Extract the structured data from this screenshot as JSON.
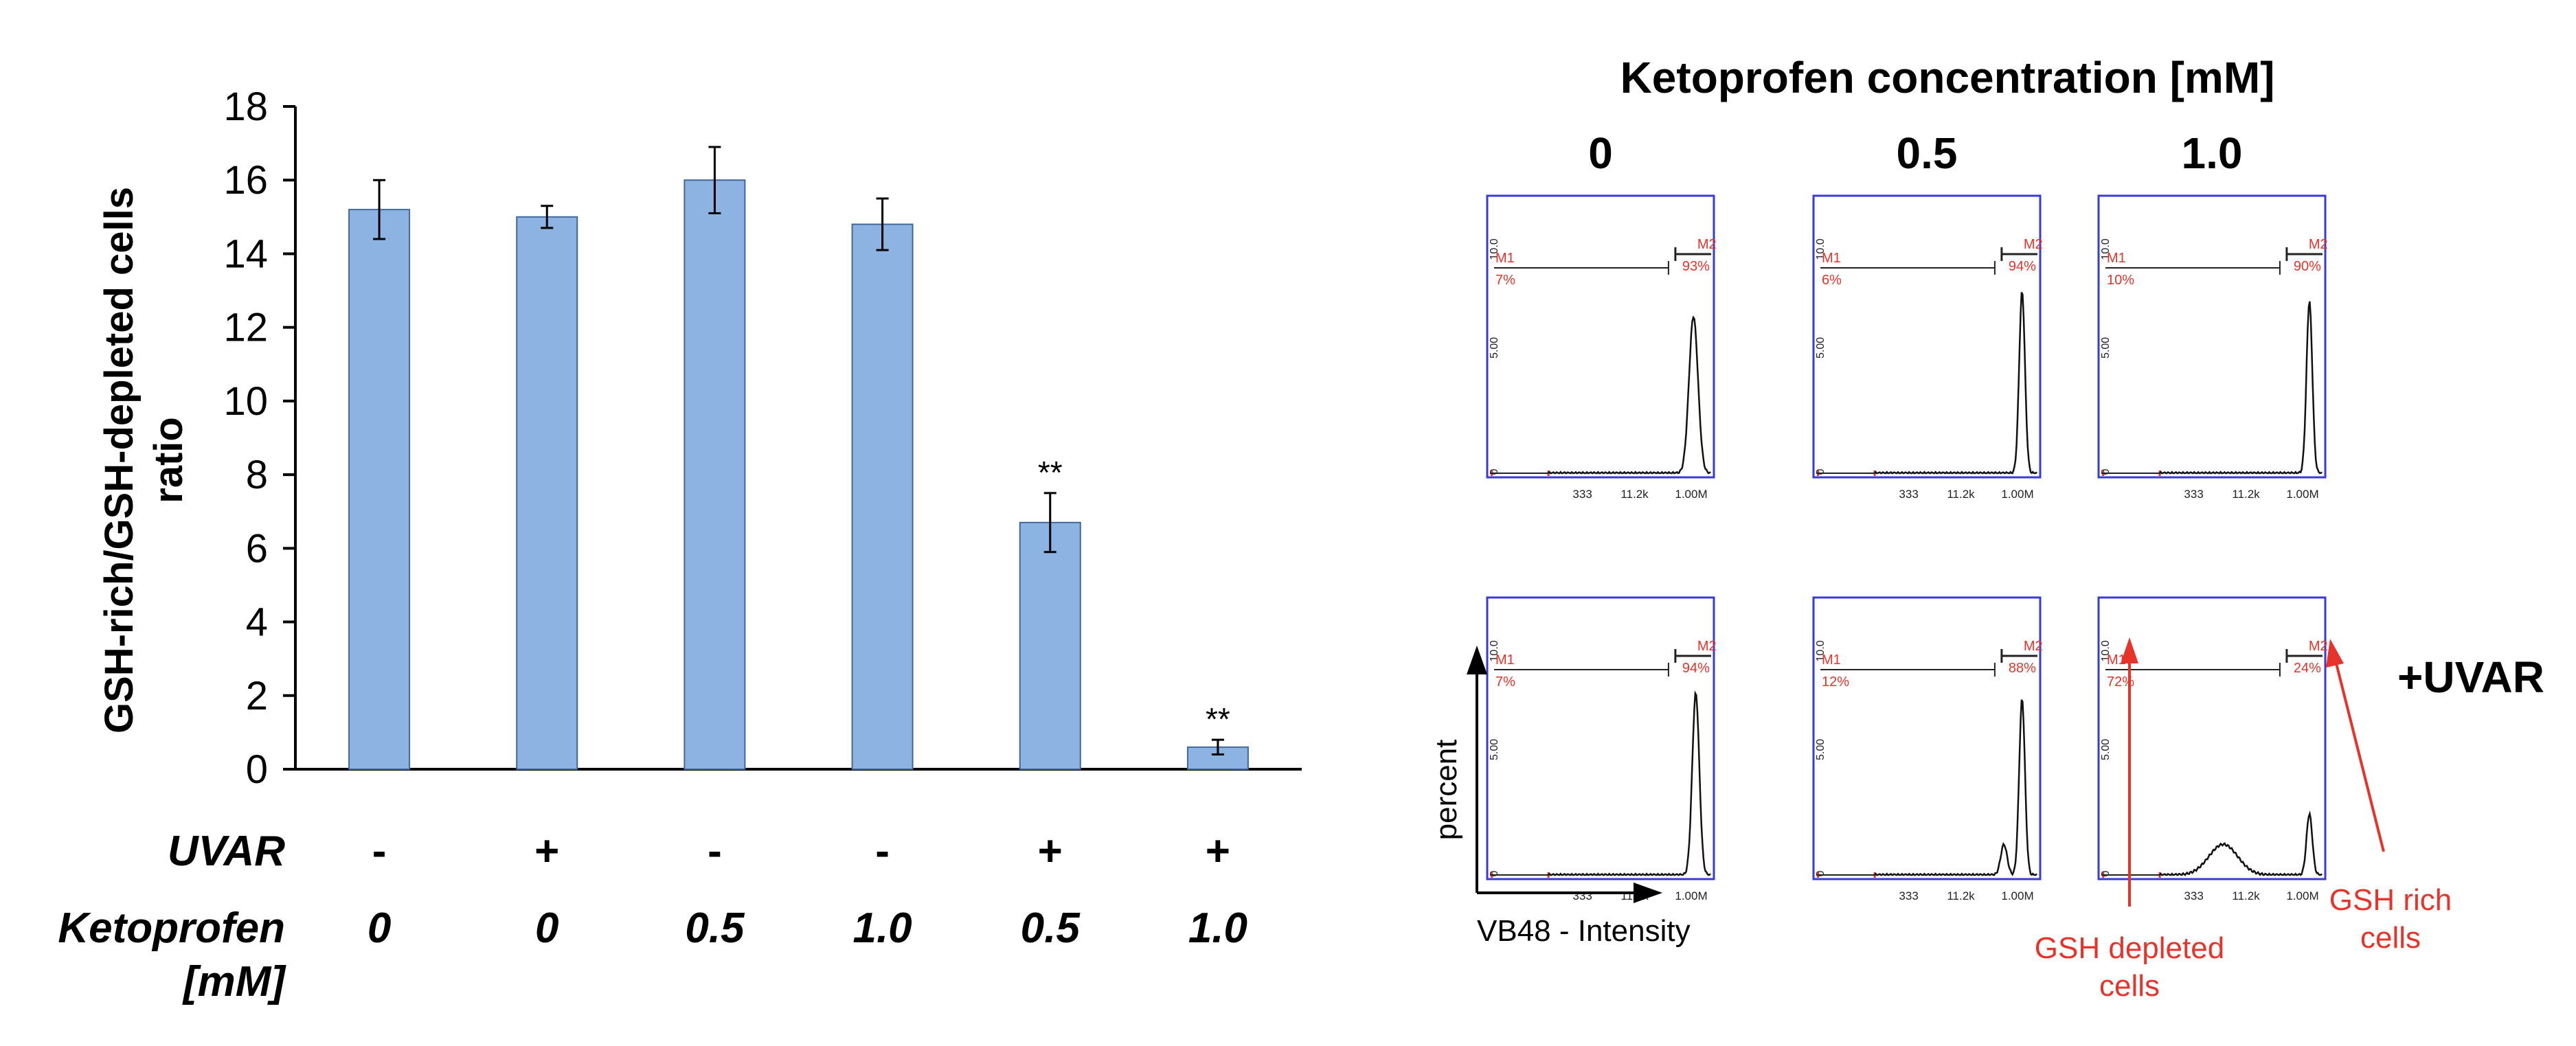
{
  "chart_data": [
    {
      "type": "bar",
      "title": "",
      "ylabel": "GSH-rich/GSH-depleted cells ratio",
      "ylabel_lines": [
        "GSH-rich/GSH-depleted cells",
        "ratio"
      ],
      "ylim": [
        0,
        18
      ],
      "yticks": [
        "0",
        "2",
        "4",
        "6",
        "8",
        "10",
        "12",
        "14",
        "16",
        "18"
      ],
      "bar_color": "#8db3e2",
      "grid": false,
      "categories": [
        "1",
        "2",
        "3",
        "4",
        "5",
        "6"
      ],
      "values": [
        15.2,
        15.0,
        16.0,
        14.8,
        6.7,
        0.6
      ],
      "errors": [
        0.8,
        0.3,
        0.9,
        0.7,
        0.8,
        0.2
      ],
      "annotations": [
        "",
        "",
        "",
        "",
        "**",
        "**"
      ],
      "row_labels": [
        {
          "label": "UVAR",
          "values": [
            "-",
            "+",
            "-",
            "-",
            "+",
            "+"
          ]
        },
        {
          "label": "Ketoprofen",
          "label2": "[mM]",
          "values": [
            "0",
            "0",
            "0.5",
            "1.0",
            "0.5",
            "1.0"
          ]
        }
      ]
    },
    {
      "type": "histogram-grid",
      "title": "Ketoprofen concentration [mM]",
      "column_labels": [
        "0",
        "0.5",
        "1.0"
      ],
      "row_label": "+UVAR",
      "axis_ticks_x": [
        "333",
        "11.2k",
        "1.00M"
      ],
      "axis_ticks_y": [
        "0",
        "5.00",
        "10.0"
      ],
      "marker_labels": [
        "M1",
        "M2"
      ],
      "panels": [
        {
          "m1": "7%",
          "m2": "93%",
          "peak": 0.82,
          "peak_pos": 0.91,
          "width": 0.028,
          "shoulder": 0.0,
          "shoulder_pos": 0.0
        },
        {
          "m1": "6%",
          "m2": "94%",
          "peak": 0.95,
          "peak_pos": 0.92,
          "width": 0.018,
          "shoulder": 0.0,
          "shoulder_pos": 0.0
        },
        {
          "m1": "10%",
          "m2": "90%",
          "peak": 0.9,
          "peak_pos": 0.93,
          "width": 0.018,
          "shoulder": 0.0,
          "shoulder_pos": 0.0
        },
        {
          "m1": "7%",
          "m2": "94%",
          "peak": 0.95,
          "peak_pos": 0.92,
          "width": 0.022,
          "shoulder": 0.0,
          "shoulder_pos": 0.0
        },
        {
          "m1": "12%",
          "m2": "88%",
          "peak": 0.92,
          "peak_pos": 0.92,
          "width": 0.018,
          "shoulder": 0.16,
          "shoulder_pos": 0.84
        },
        {
          "m1": "72%",
          "m2": "24%",
          "peak": 0.32,
          "peak_pos": 0.93,
          "width": 0.018,
          "shoulder": 0.16,
          "shoulder_pos": 0.55
        }
      ],
      "y_axis_label": "percent",
      "x_axis_label": "VB48 - Intensity",
      "annotations": [
        "GSH depleted cells",
        "GSH rich cells"
      ],
      "annotation_lines": [
        [
          "GSH depleted",
          "cells"
        ],
        [
          "GSH rich",
          "cells"
        ]
      ],
      "annotation_color": "#e8332a",
      "frame_color": "#3a3ad8"
    }
  ]
}
